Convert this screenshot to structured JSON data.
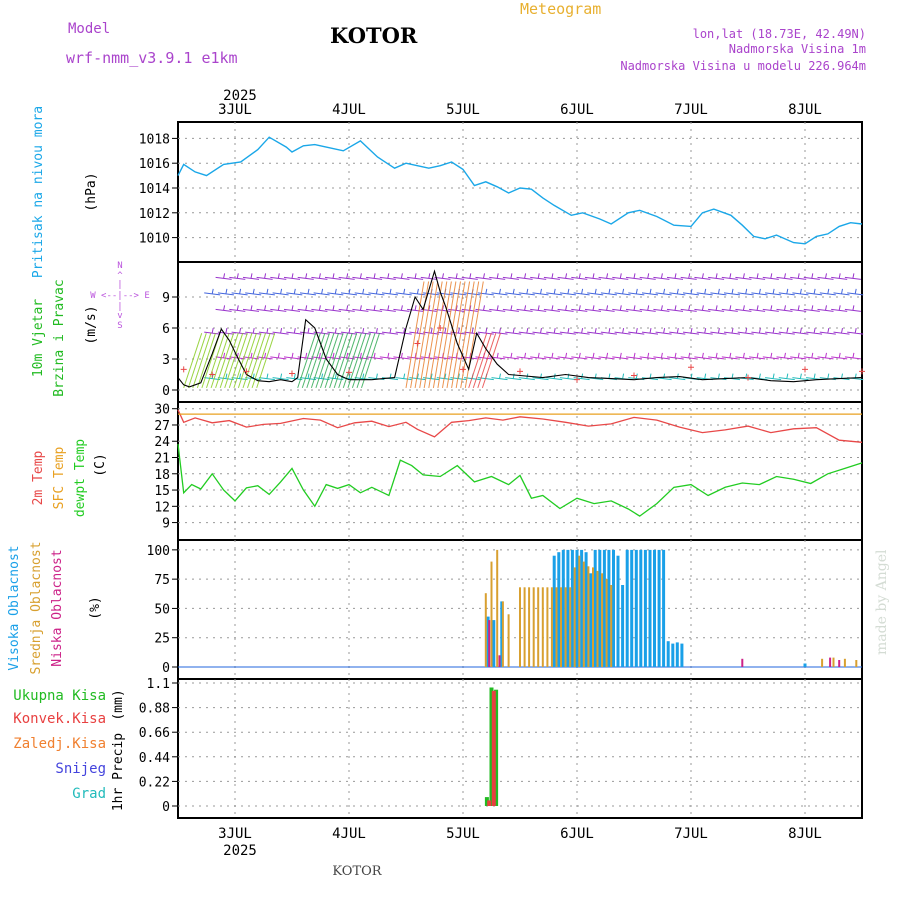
{
  "header": {
    "model_label": "Model",
    "model_name": "wrf-nmm_v3.9.1 e1km",
    "station": "KOTOR",
    "product": "Meteogram",
    "lonlat": "lon,lat (18.73E, 42.49N)",
    "altitude": "Nadmorska Visina 1m",
    "model_altitude": "Nadmorska Visina u modelu 226.964m",
    "year": "2025",
    "footer_station": "KOTOR",
    "watermark": "made by Angel"
  },
  "colors": {
    "pressure": "#1aa7e8",
    "wind10m": "#22bb22",
    "wind_speed": "#000000",
    "temp2m": "#e84848",
    "sfc_temp": "#e8a020",
    "dewpoint": "#22cc22",
    "high_cloud": "#1aa0e8",
    "mid_cloud": "#d8a030",
    "low_cloud": "#cc2288",
    "rain_total": "#22bb22",
    "rain_conv": "#e84040",
    "freezing": "#f08030",
    "snow": "#4444dd",
    "hail": "#22bbbb",
    "header_purple": "#aa44cc",
    "header_orange": "#e8b030",
    "direction_axis": "#bb55dd"
  },
  "chart_data": [
    {
      "type": "line",
      "panel": "pressure",
      "ylabel_main": "Pritisak na nivou mora",
      "ylabel_unit": "(hPa)",
      "yticks": [
        "1010",
        "1012",
        "1014",
        "1016",
        "1018"
      ],
      "ylim": [
        1009,
        1019
      ],
      "xlim": [
        0,
        6
      ],
      "grid": true,
      "x": [
        0,
        0.05,
        0.15,
        0.25,
        0.4,
        0.55,
        0.7,
        0.8,
        0.95,
        1.0,
        1.1,
        1.2,
        1.3,
        1.45,
        1.6,
        1.75,
        1.9,
        2.0,
        2.1,
        2.2,
        2.3,
        2.4,
        2.5,
        2.6,
        2.7,
        2.8,
        2.9,
        3.0,
        3.1,
        3.2,
        3.3,
        3.45,
        3.55,
        3.7,
        3.8,
        3.95,
        4.05,
        4.2,
        4.35,
        4.5,
        4.6,
        4.7,
        4.85,
        4.95,
        5.05,
        5.15,
        5.25,
        5.4,
        5.5,
        5.6,
        5.7,
        5.8,
        5.9,
        6.0
      ],
      "values": [
        1015.0,
        1015.9,
        1015.3,
        1015.0,
        1015.9,
        1016.1,
        1017.1,
        1018.1,
        1017.3,
        1016.9,
        1017.4,
        1017.5,
        1017.3,
        1017.0,
        1017.8,
        1016.5,
        1015.6,
        1016.0,
        1015.8,
        1015.6,
        1015.8,
        1016.1,
        1015.5,
        1014.2,
        1014.5,
        1014.1,
        1013.6,
        1014.0,
        1013.9,
        1013.2,
        1012.6,
        1011.8,
        1012.0,
        1011.5,
        1011.1,
        1012.0,
        1012.2,
        1011.7,
        1011.0,
        1010.9,
        1012.0,
        1012.3,
        1011.8,
        1011.0,
        1010.1,
        1009.9,
        1010.2,
        1009.6,
        1009.5,
        1010.1,
        1010.3,
        1010.9,
        1011.2,
        1011.1
      ]
    },
    {
      "type": "line",
      "panel": "wind",
      "ylabel_main": "10m Vjetar",
      "ylabel_sub": "Brzina i Pravac",
      "ylabel_unit": "(m/s)",
      "yticks": [
        "0",
        "3",
        "6",
        "9"
      ],
      "ylim": [
        0,
        12
      ],
      "direction_key": [
        "N",
        "^",
        "|",
        "W <--|--> E",
        "|",
        "v",
        "S"
      ],
      "grid": true,
      "x": [
        0,
        0.05,
        0.1,
        0.2,
        0.3,
        0.38,
        0.45,
        0.52,
        0.6,
        0.7,
        0.8,
        0.9,
        1.0,
        1.05,
        1.12,
        1.2,
        1.3,
        1.4,
        1.5,
        1.6,
        1.7,
        1.8,
        1.9,
        2.0,
        2.08,
        2.15,
        2.25,
        2.3,
        2.35,
        2.45,
        2.55,
        2.62,
        2.7,
        2.8,
        2.9,
        3.0,
        3.2,
        3.4,
        3.6,
        3.8,
        4.0,
        4.2,
        4.4,
        4.6,
        4.8,
        5.0,
        5.2,
        5.4,
        5.6,
        5.8,
        6.0
      ],
      "values": [
        1.2,
        0.5,
        0.3,
        0.7,
        3.5,
        5.9,
        4.8,
        3.2,
        1.5,
        0.9,
        0.8,
        1.0,
        0.8,
        1.2,
        6.8,
        6.0,
        3.0,
        1.5,
        1.0,
        1.0,
        1.0,
        1.1,
        1.2,
        6.0,
        9.0,
        7.8,
        11.5,
        9.5,
        8.0,
        4.5,
        2.0,
        5.5,
        4.0,
        2.5,
        1.5,
        1.4,
        1.2,
        1.5,
        1.2,
        1.1,
        1.0,
        1.2,
        1.3,
        1.0,
        1.1,
        1.2,
        0.9,
        0.8,
        1.0,
        1.1,
        1.2
      ],
      "series": [
        {
          "name": "10m speed (x)",
          "x": [
            0.05,
            0.3,
            0.6,
            1.0,
            1.5,
            2.1,
            2.3,
            2.5,
            3.0,
            3.5,
            4.0,
            4.5,
            5.0,
            5.5,
            6.0
          ],
          "values": [
            2.0,
            1.5,
            1.8,
            1.6,
            1.7,
            4.5,
            6.0,
            2.0,
            1.8,
            1.0,
            1.4,
            2.2,
            1.2,
            2.0,
            1.8
          ]
        }
      ]
    },
    {
      "type": "line",
      "panel": "temperature",
      "ylabel_parts": [
        "2m Temp",
        "SFC Temp",
        "dewpt Temp"
      ],
      "ylabel_unit": "(C)",
      "yticks": [
        "9",
        "12",
        "15",
        "18",
        "21",
        "24",
        "27",
        "30"
      ],
      "ylim": [
        8,
        30.5
      ],
      "grid": true,
      "series": [
        {
          "name": "2m Temp",
          "x": [
            0,
            0.05,
            0.15,
            0.3,
            0.45,
            0.6,
            0.75,
            0.9,
            1.1,
            1.25,
            1.4,
            1.55,
            1.7,
            1.85,
            2.0,
            2.1,
            2.25,
            2.4,
            2.55,
            2.7,
            2.85,
            3.0,
            3.2,
            3.4,
            3.6,
            3.8,
            4.0,
            4.2,
            4.4,
            4.6,
            4.8,
            5.0,
            5.2,
            5.4,
            5.6,
            5.8,
            6.0
          ],
          "values": [
            29.8,
            27.5,
            28.3,
            27.4,
            27.8,
            26.6,
            27.1,
            27.3,
            28.2,
            27.9,
            26.5,
            27.4,
            27.7,
            26.7,
            27.5,
            26.2,
            24.8,
            27.5,
            27.8,
            28.3,
            27.9,
            28.5,
            28.1,
            27.5,
            26.8,
            27.2,
            28.4,
            27.9,
            26.6,
            25.6,
            26.1,
            26.8,
            25.6,
            26.3,
            26.5,
            24.2,
            23.8
          ]
        },
        {
          "name": "SFC Temp",
          "x": [
            0,
            6
          ],
          "values": [
            29.0,
            29.0
          ]
        },
        {
          "name": "dewpt Temp",
          "x": [
            0,
            0.05,
            0.12,
            0.2,
            0.3,
            0.4,
            0.5,
            0.6,
            0.7,
            0.8,
            0.9,
            1.0,
            1.1,
            1.2,
            1.3,
            1.4,
            1.5,
            1.6,
            1.7,
            1.85,
            1.95,
            2.05,
            2.15,
            2.3,
            2.45,
            2.6,
            2.75,
            2.9,
            3.0,
            3.1,
            3.2,
            3.35,
            3.5,
            3.65,
            3.8,
            3.95,
            4.05,
            4.2,
            4.35,
            4.5,
            4.65,
            4.8,
            4.95,
            5.1,
            5.25,
            5.4,
            5.55,
            5.7,
            5.85,
            6.0
          ],
          "values": [
            23.5,
            14.5,
            16.0,
            15.2,
            18.0,
            15.0,
            13.0,
            15.4,
            15.8,
            14.2,
            16.5,
            19.0,
            15.0,
            12.0,
            16.0,
            15.3,
            16.0,
            14.5,
            15.5,
            14.0,
            20.5,
            19.5,
            17.8,
            17.5,
            19.5,
            16.5,
            17.5,
            16.0,
            17.7,
            13.5,
            14.0,
            11.6,
            13.5,
            12.5,
            13.0,
            11.5,
            10.2,
            12.5,
            15.5,
            16.0,
            14.0,
            15.5,
            16.3,
            16.0,
            17.5,
            17.0,
            16.2,
            18.0,
            19.0,
            20.0
          ]
        }
      ]
    },
    {
      "type": "bar",
      "panel": "clouds",
      "ylabel_parts": [
        "Visoka Oblacnost",
        "Srednja Oblacnost",
        "Niska Oblacnost"
      ],
      "ylabel_unit": "(%)",
      "yticks": [
        "0",
        "25",
        "50",
        "75",
        "100"
      ],
      "ylim": [
        0,
        105
      ],
      "grid": true,
      "series": [
        {
          "name": "Visoka Oblacnost",
          "x": [
            2.72,
            2.77,
            2.84,
            3.3,
            3.34,
            3.38,
            3.42,
            3.46,
            3.5,
            3.54,
            3.58,
            3.62,
            3.66,
            3.7,
            3.74,
            3.78,
            3.82,
            3.86,
            3.9,
            3.94,
            3.98,
            4.02,
            4.06,
            4.1,
            4.14,
            4.18,
            4.22,
            4.26,
            4.3,
            4.34,
            4.38,
            4.42,
            5.5
          ],
          "values": [
            43,
            40,
            56,
            95,
            98,
            100,
            100,
            100,
            100,
            100,
            98,
            80,
            100,
            100,
            100,
            100,
            100,
            95,
            70,
            100,
            100,
            100,
            100,
            100,
            100,
            100,
            100,
            100,
            22,
            20,
            21,
            20,
            3
          ]
        },
        {
          "name": "Srednja Oblacnost",
          "x": [
            2.7,
            2.75,
            2.8,
            2.85,
            2.9,
            3.0,
            3.04,
            3.08,
            3.12,
            3.16,
            3.2,
            3.24,
            3.28,
            3.32,
            3.36,
            3.4,
            3.44,
            3.48,
            3.52,
            3.56,
            3.6,
            3.64,
            3.68,
            3.72,
            3.76,
            3.8,
            5.65,
            5.75,
            5.85,
            5.95
          ],
          "values": [
            63,
            90,
            100,
            56,
            45,
            68,
            68,
            68,
            68,
            68,
            68,
            68,
            68,
            68,
            68,
            68,
            68,
            85,
            95,
            90,
            86,
            85,
            82,
            80,
            75,
            70,
            7,
            8,
            7,
            6
          ]
        },
        {
          "name": "Niska Oblacnost",
          "x": [
            2.73,
            2.82,
            4.95,
            5.72,
            5.8
          ],
          "values": [
            40,
            10,
            7,
            8,
            6
          ]
        }
      ]
    },
    {
      "type": "bar",
      "panel": "precip",
      "ylabel_main": "1hr Precip",
      "ylabel_unit": "(mm)",
      "legend": [
        "Ukupna Kisa",
        "Konvek.Kisa",
        "Zaledj.Kisa",
        "Snijeg",
        "Grad"
      ],
      "yticks": [
        "0",
        "0.22",
        "0.44",
        "0.66",
        "0.88",
        "1.1"
      ],
      "ylim": [
        0,
        1.1
      ],
      "grid": true,
      "series": [
        {
          "name": "Ukupna Kisa",
          "x": [
            2.71,
            2.75,
            2.79
          ],
          "values": [
            0.08,
            1.06,
            1.04
          ]
        },
        {
          "name": "Konvek.Kisa",
          "x": [
            2.73,
            2.77
          ],
          "values": [
            0.05,
            1.03
          ]
        }
      ]
    }
  ],
  "x_axis": {
    "top_labels": [
      "3JUL",
      "4JUL",
      "5JUL",
      "6JUL",
      "7JUL",
      "8JUL"
    ],
    "bottom_labels": [
      "3JUL",
      "4JUL",
      "5JUL",
      "6JUL",
      "7JUL",
      "8JUL"
    ],
    "label_positions_days": [
      0.5,
      1.5,
      2.5,
      3.5,
      4.5,
      5.5
    ]
  }
}
